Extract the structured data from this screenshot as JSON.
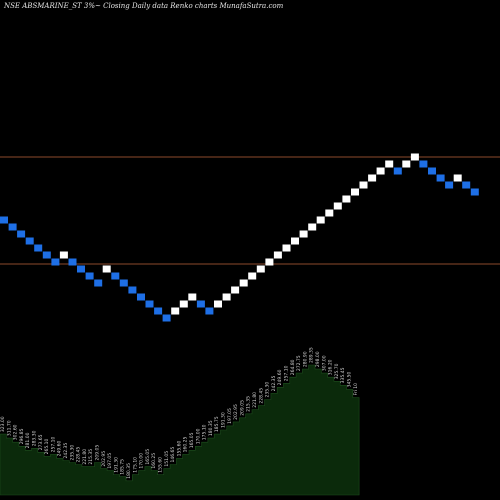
{
  "header": {
    "title": "NSE ABSMARINE_ST 3%~  Closing Daily data  Renko  charts MunafaSutra.com"
  },
  "colors": {
    "background": "#000000",
    "up_brick": "#ffffff",
    "down_brick": "#1e6fe6",
    "level_line": "#8b4a2b",
    "volume_fill": "#0b2a0b",
    "label": "#d8d8d8"
  },
  "chart_data": {
    "type": "renko",
    "box_size_pct": 3,
    "grid": false,
    "bricks": [
      {
        "dir": "down",
        "level": 0
      },
      {
        "dir": "down",
        "level": -1
      },
      {
        "dir": "down",
        "level": -2
      },
      {
        "dir": "down",
        "level": -3
      },
      {
        "dir": "down",
        "level": -4
      },
      {
        "dir": "down",
        "level": -5
      },
      {
        "dir": "down",
        "level": -6
      },
      {
        "dir": "up",
        "level": -5
      },
      {
        "dir": "down",
        "level": -6
      },
      {
        "dir": "down",
        "level": -7
      },
      {
        "dir": "down",
        "level": -8
      },
      {
        "dir": "down",
        "level": -9
      },
      {
        "dir": "up",
        "level": -7
      },
      {
        "dir": "down",
        "level": -8
      },
      {
        "dir": "down",
        "level": -9
      },
      {
        "dir": "down",
        "level": -10
      },
      {
        "dir": "down",
        "level": -11
      },
      {
        "dir": "down",
        "level": -12
      },
      {
        "dir": "down",
        "level": -13
      },
      {
        "dir": "down",
        "level": -14
      },
      {
        "dir": "up",
        "level": -13
      },
      {
        "dir": "up",
        "level": -12
      },
      {
        "dir": "up",
        "level": -11
      },
      {
        "dir": "down",
        "level": -12
      },
      {
        "dir": "down",
        "level": -13
      },
      {
        "dir": "up",
        "level": -12
      },
      {
        "dir": "up",
        "level": -11
      },
      {
        "dir": "up",
        "level": -10
      },
      {
        "dir": "up",
        "level": -9
      },
      {
        "dir": "up",
        "level": -8
      },
      {
        "dir": "up",
        "level": -7
      },
      {
        "dir": "up",
        "level": -6
      },
      {
        "dir": "up",
        "level": -5
      },
      {
        "dir": "up",
        "level": -4
      },
      {
        "dir": "up",
        "level": -3
      },
      {
        "dir": "up",
        "level": -2
      },
      {
        "dir": "up",
        "level": -1
      },
      {
        "dir": "up",
        "level": 0
      },
      {
        "dir": "up",
        "level": 1
      },
      {
        "dir": "up",
        "level": 2
      },
      {
        "dir": "up",
        "level": 3
      },
      {
        "dir": "up",
        "level": 4
      },
      {
        "dir": "up",
        "level": 5
      },
      {
        "dir": "up",
        "level": 6
      },
      {
        "dir": "up",
        "level": 7
      },
      {
        "dir": "up",
        "level": 8
      },
      {
        "dir": "down",
        "level": 7
      },
      {
        "dir": "up",
        "level": 8
      },
      {
        "dir": "up",
        "level": 9
      },
      {
        "dir": "down",
        "level": 8
      },
      {
        "dir": "down",
        "level": 7
      },
      {
        "dir": "down",
        "level": 6
      },
      {
        "dir": "down",
        "level": 5
      },
      {
        "dir": "up",
        "level": 6
      },
      {
        "dir": "down",
        "level": 5
      },
      {
        "dir": "down",
        "level": 4
      }
    ],
    "levels": [
      {
        "name": "upper",
        "brick_level": 9
      },
      {
        "name": "lower",
        "brick_level": -6
      }
    ],
    "volume": [
      30,
      28,
      26,
      24,
      22,
      23,
      21,
      19,
      20,
      18,
      17,
      16,
      15,
      14,
      14,
      16,
      13,
      12,
      10,
      9,
      7,
      10,
      12,
      14,
      12,
      10,
      13,
      15,
      18,
      20,
      22,
      24,
      26,
      28,
      30,
      32,
      34,
      36,
      38,
      40,
      42,
      44,
      47,
      50,
      53,
      55,
      58,
      60,
      62,
      64,
      62,
      60,
      58,
      56,
      54,
      52,
      48
    ]
  },
  "volume_labels": [
    "323.00",
    "311.70",
    "302.60",
    "296.85",
    "281.00",
    "283.30",
    "273.65",
    "265.10",
    "257.10",
    "249.60",
    "242.35",
    "235.30",
    "228.45",
    "221.80",
    "215.35",
    "209.05",
    "202.95",
    "197.05",
    "191.30",
    "185.75",
    "180.35",
    "175.10",
    "170.00",
    "165.05",
    "160.25",
    "155.60",
    "151.05",
    "146.65",
    "155.60",
    "160.25",
    "165.05",
    "170.00",
    "175.10",
    "180.35",
    "185.75",
    "191.30",
    "197.05",
    "202.95",
    "209.05",
    "215.35",
    "221.80",
    "228.45",
    "235.30",
    "242.35",
    "249.60",
    "257.10",
    "264.80",
    "272.75",
    "280.90",
    "289.35",
    "298.00",
    "307.00",
    "316.20",
    "325.70",
    "335.45",
    "345.50",
    "Fri 10"
  ]
}
